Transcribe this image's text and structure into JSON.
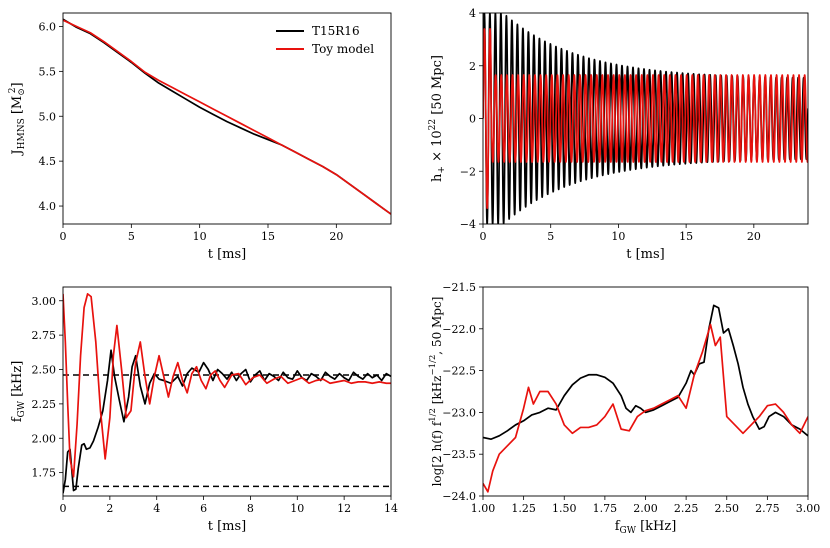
{
  "chart_data": [
    {
      "type": "line",
      "title": "",
      "xlabel": "t [ms]",
      "ylabel": "J_HMNS [M_sun^2]",
      "ylabel_parts": {
        "main": "J",
        "sub": "HMNS",
        "unit_open": " [M",
        "unit_sub": "⊙",
        "unit_sup": "2",
        "unit_close": "]"
      },
      "xlim": [
        0,
        24
      ],
      "ylim": [
        3.8,
        6.15
      ],
      "xticks": [
        0,
        5,
        10,
        15,
        20
      ],
      "yticks": [
        4.0,
        4.5,
        5.0,
        5.5,
        6.0
      ],
      "ytick_labels": [
        "4.0",
        "4.5",
        "5.0",
        "5.5",
        "6.0"
      ],
      "legend": {
        "position": "top-right",
        "entries": [
          "T15R16",
          "Toy model"
        ]
      },
      "series": [
        {
          "name": "T15R16",
          "color": "#000000",
          "x": [
            0,
            1,
            2,
            3,
            4,
            5,
            6,
            7,
            8,
            9,
            10,
            11,
            12,
            13,
            14,
            15,
            16,
            17,
            18,
            19,
            20,
            21,
            22,
            23,
            24
          ],
          "y": [
            6.08,
            5.99,
            5.92,
            5.82,
            5.71,
            5.6,
            5.48,
            5.37,
            5.28,
            5.19,
            5.1,
            5.02,
            4.94,
            4.87,
            4.8,
            4.74,
            4.68,
            4.6,
            4.52,
            4.44,
            4.35,
            4.24,
            4.13,
            4.02,
            3.91
          ]
        },
        {
          "name": "Toy model",
          "color": "#e8120e",
          "x": [
            0,
            1,
            2,
            3,
            4,
            5,
            6,
            7,
            8,
            9,
            10,
            11,
            12,
            13,
            14,
            15,
            16,
            17,
            18,
            19,
            20,
            21,
            22,
            23,
            24
          ],
          "y": [
            6.07,
            6.0,
            5.93,
            5.83,
            5.72,
            5.61,
            5.49,
            5.4,
            5.32,
            5.24,
            5.16,
            5.08,
            5.0,
            4.92,
            4.84,
            4.76,
            4.68,
            4.6,
            4.52,
            4.44,
            4.35,
            4.24,
            4.13,
            4.02,
            3.91
          ]
        }
      ]
    },
    {
      "type": "line",
      "title": "",
      "xlabel": "t [ms]",
      "ylabel": "h_+ × 10^22 [50 Mpc]",
      "ylabel_parts": {
        "main": "h",
        "sub": "+",
        "mid": " × 10",
        "sup": "22",
        "tail": " [50 Mpc]"
      },
      "xlim": [
        0,
        24
      ],
      "ylim": [
        -4,
        4
      ],
      "xticks": [
        0,
        5,
        10,
        15,
        20
      ],
      "yticks": [
        -4,
        -2,
        0,
        2,
        4
      ],
      "ytick_labels": [
        "−4",
        "−2",
        "0",
        "2",
        "4"
      ],
      "series": [
        {
          "name": "T15R16",
          "color": "#000000",
          "model": "decaying-oscillation",
          "t_start": 0,
          "t_end": 24,
          "frequency_khz": 2.46,
          "amplitude_peak": 4.0,
          "amplitude_late": 1.5
        },
        {
          "name": "Toy model",
          "color": "#e8120e",
          "model": "constant-oscillation",
          "t_start": 0,
          "t_end": 24,
          "frequency_khz": 2.41,
          "amplitude_peak": 3.4,
          "amplitude_late": 1.65
        }
      ]
    },
    {
      "type": "line",
      "title": "",
      "xlabel": "t [ms]",
      "ylabel": "f_GW [kHz]",
      "ylabel_parts": {
        "main": "f",
        "sub": "GW",
        "tail": " [kHz]"
      },
      "xlim": [
        0,
        14
      ],
      "ylim": [
        1.58,
        3.1
      ],
      "xticks": [
        0,
        2,
        4,
        6,
        8,
        10,
        12,
        14
      ],
      "yticks": [
        1.75,
        2.0,
        2.25,
        2.5,
        2.75,
        3.0
      ],
      "ytick_labels": [
        "1.75",
        "2.00",
        "2.25",
        "2.50",
        "2.75",
        "3.00"
      ],
      "reference_lines": [
        {
          "y": 2.46,
          "style": "dashed",
          "color": "#000000"
        },
        {
          "y": 1.65,
          "style": "dashed",
          "color": "#000000"
        }
      ],
      "series": [
        {
          "name": "T15R16",
          "color": "#000000",
          "x": [
            0,
            0.1,
            0.2,
            0.3,
            0.45,
            0.55,
            0.65,
            0.8,
            0.9,
            1.0,
            1.15,
            1.3,
            1.5,
            1.7,
            1.9,
            2.05,
            2.2,
            2.4,
            2.6,
            2.8,
            2.95,
            3.1,
            3.3,
            3.5,
            3.7,
            3.9,
            4.1,
            4.3,
            4.6,
            4.9,
            5.1,
            5.3,
            5.5,
            5.8,
            6.0,
            6.2,
            6.4,
            6.6,
            6.8,
            7.0,
            7.2,
            7.4,
            7.6,
            7.8,
            8.0,
            8.2,
            8.4,
            8.6,
            8.8,
            9.0,
            9.2,
            9.4,
            9.6,
            9.8,
            10.0,
            10.2,
            10.4,
            10.6,
            10.8,
            11.0,
            11.2,
            11.4,
            11.6,
            11.8,
            12.0,
            12.2,
            12.4,
            12.6,
            12.8,
            13.0,
            13.2,
            13.4,
            13.6,
            13.8,
            14.0
          ],
          "y": [
            1.6,
            1.7,
            1.9,
            1.92,
            1.62,
            1.63,
            1.78,
            1.95,
            1.96,
            1.92,
            1.93,
            1.98,
            2.08,
            2.2,
            2.42,
            2.64,
            2.45,
            2.28,
            2.12,
            2.3,
            2.52,
            2.6,
            2.38,
            2.25,
            2.4,
            2.47,
            2.43,
            2.42,
            2.4,
            2.45,
            2.38,
            2.47,
            2.51,
            2.48,
            2.55,
            2.5,
            2.42,
            2.5,
            2.47,
            2.43,
            2.48,
            2.42,
            2.47,
            2.5,
            2.41,
            2.46,
            2.49,
            2.42,
            2.47,
            2.45,
            2.42,
            2.48,
            2.44,
            2.43,
            2.49,
            2.44,
            2.42,
            2.47,
            2.45,
            2.42,
            2.48,
            2.45,
            2.43,
            2.47,
            2.44,
            2.42,
            2.48,
            2.45,
            2.43,
            2.47,
            2.44,
            2.46,
            2.42,
            2.47,
            2.45
          ]
        },
        {
          "name": "Toy model",
          "color": "#e8120e",
          "x": [
            0,
            0.1,
            0.2,
            0.3,
            0.45,
            0.6,
            0.75,
            0.9,
            1.05,
            1.2,
            1.4,
            1.6,
            1.8,
            2.0,
            2.15,
            2.3,
            2.5,
            2.7,
            2.9,
            3.1,
            3.3,
            3.5,
            3.7,
            3.9,
            4.1,
            4.3,
            4.5,
            4.7,
            4.9,
            5.1,
            5.3,
            5.5,
            5.7,
            5.9,
            6.1,
            6.3,
            6.5,
            6.7,
            6.9,
            7.2,
            7.5,
            7.8,
            8.1,
            8.4,
            8.7,
            9.0,
            9.3,
            9.6,
            9.9,
            10.2,
            10.5,
            10.8,
            11.1,
            11.4,
            11.7,
            12.0,
            12.3,
            12.6,
            12.9,
            13.2,
            13.5,
            13.8,
            14.0
          ],
          "y": [
            3.05,
            2.7,
            2.25,
            1.85,
            1.72,
            2.1,
            2.6,
            2.95,
            3.05,
            3.03,
            2.7,
            2.2,
            1.85,
            2.15,
            2.6,
            2.82,
            2.5,
            2.15,
            2.2,
            2.55,
            2.7,
            2.45,
            2.25,
            2.45,
            2.6,
            2.45,
            2.3,
            2.45,
            2.55,
            2.42,
            2.33,
            2.47,
            2.52,
            2.42,
            2.36,
            2.46,
            2.49,
            2.42,
            2.37,
            2.46,
            2.47,
            2.39,
            2.44,
            2.46,
            2.4,
            2.43,
            2.45,
            2.4,
            2.42,
            2.44,
            2.4,
            2.42,
            2.43,
            2.4,
            2.41,
            2.42,
            2.4,
            2.41,
            2.41,
            2.4,
            2.41,
            2.4,
            2.4
          ]
        }
      ]
    },
    {
      "type": "line",
      "title": "",
      "xlabel": "f_GW [kHz]",
      "xlabel_parts": {
        "main": "f",
        "sub": "GW",
        "tail": " [kHz]"
      },
      "ylabel": "log[2 h(f) f^1/2 [kHz^-1/2, 50 Mpc]",
      "ylabel_parts": {
        "a": "log[2 h(f) f",
        "a_sup": "1/2",
        "b": " [kHz",
        "b_sup": "−1/2",
        "c": ", 50 Mpc]"
      },
      "xlim": [
        1.0,
        3.0
      ],
      "ylim": [
        -24.0,
        -21.5
      ],
      "xticks": [
        1.0,
        1.25,
        1.5,
        1.75,
        2.0,
        2.25,
        2.5,
        2.75,
        3.0
      ],
      "xtick_labels": [
        "1.00",
        "1.25",
        "1.50",
        "1.75",
        "2.00",
        "2.25",
        "2.50",
        "2.75",
        "3.00"
      ],
      "yticks": [
        -24.0,
        -23.5,
        -23.0,
        -22.5,
        -22.0,
        -21.5
      ],
      "ytick_labels": [
        "−24.0",
        "−23.5",
        "−23.0",
        "−22.5",
        "−22.0",
        "−21.5"
      ],
      "series": [
        {
          "name": "T15R16",
          "color": "#000000",
          "x": [
            1.0,
            1.05,
            1.1,
            1.15,
            1.2,
            1.25,
            1.3,
            1.35,
            1.4,
            1.45,
            1.5,
            1.55,
            1.6,
            1.65,
            1.7,
            1.75,
            1.8,
            1.85,
            1.88,
            1.91,
            1.94,
            1.97,
            2.0,
            2.05,
            2.1,
            2.15,
            2.2,
            2.25,
            2.28,
            2.3,
            2.33,
            2.36,
            2.39,
            2.42,
            2.45,
            2.48,
            2.51,
            2.54,
            2.57,
            2.6,
            2.63,
            2.66,
            2.7,
            2.73,
            2.76,
            2.8,
            2.85,
            2.9,
            2.95,
            3.0
          ],
          "y": [
            -23.3,
            -23.32,
            -23.28,
            -23.22,
            -23.15,
            -23.1,
            -23.03,
            -23.0,
            -22.95,
            -22.97,
            -22.8,
            -22.67,
            -22.59,
            -22.55,
            -22.55,
            -22.58,
            -22.65,
            -22.8,
            -22.95,
            -23.0,
            -22.92,
            -22.95,
            -23.0,
            -22.97,
            -22.92,
            -22.87,
            -22.82,
            -22.65,
            -22.5,
            -22.55,
            -22.42,
            -22.4,
            -22.0,
            -21.72,
            -21.75,
            -22.05,
            -22.0,
            -22.2,
            -22.42,
            -22.7,
            -22.9,
            -23.05,
            -23.2,
            -23.17,
            -23.05,
            -23.0,
            -23.05,
            -23.15,
            -23.2,
            -23.28
          ]
        },
        {
          "name": "Toy model",
          "color": "#e8120e",
          "x": [
            1.0,
            1.03,
            1.06,
            1.1,
            1.15,
            1.2,
            1.25,
            1.28,
            1.31,
            1.35,
            1.4,
            1.45,
            1.5,
            1.55,
            1.6,
            1.65,
            1.7,
            1.75,
            1.8,
            1.85,
            1.9,
            1.95,
            2.0,
            2.05,
            2.1,
            2.15,
            2.2,
            2.25,
            2.3,
            2.35,
            2.4,
            2.43,
            2.46,
            2.5,
            2.55,
            2.6,
            2.65,
            2.7,
            2.75,
            2.8,
            2.85,
            2.9,
            2.95,
            3.0
          ],
          "y": [
            -23.85,
            -23.95,
            -23.7,
            -23.5,
            -23.4,
            -23.3,
            -22.95,
            -22.7,
            -22.9,
            -22.75,
            -22.75,
            -22.9,
            -23.15,
            -23.25,
            -23.18,
            -23.18,
            -23.15,
            -23.05,
            -22.9,
            -23.2,
            -23.22,
            -23.05,
            -22.98,
            -22.95,
            -22.9,
            -22.85,
            -22.8,
            -22.95,
            -22.55,
            -22.28,
            -21.95,
            -22.2,
            -22.1,
            -23.05,
            -23.15,
            -23.25,
            -23.15,
            -23.05,
            -22.92,
            -22.9,
            -23.0,
            -23.15,
            -23.25,
            -23.05
          ]
        }
      ]
    }
  ]
}
